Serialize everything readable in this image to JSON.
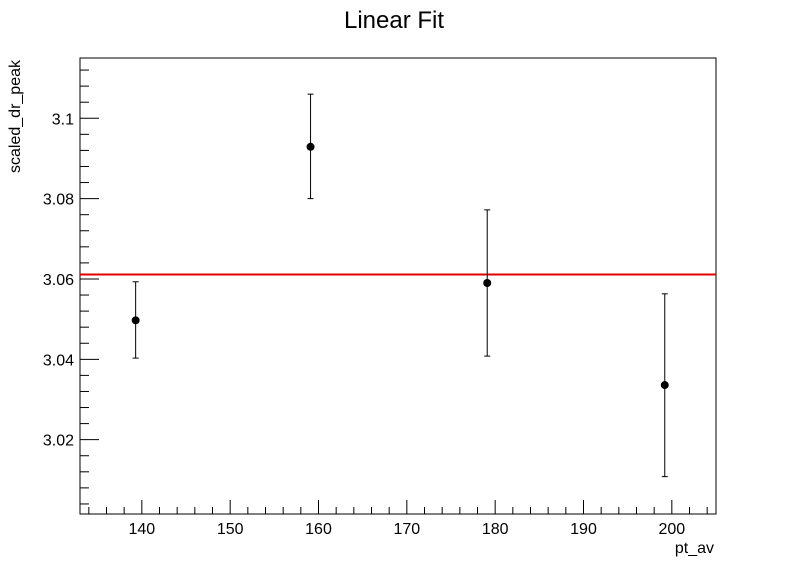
{
  "chart_data": {
    "type": "scatter",
    "title": "Linear Fit",
    "xlabel": "pt_av",
    "ylabel": "scaled_dr_peak",
    "xlim": [
      133,
      205
    ],
    "ylim": [
      3.0015,
      3.115
    ],
    "x_ticks": [
      140,
      150,
      160,
      170,
      180,
      190,
      200
    ],
    "y_ticks": [
      3.02,
      3.04,
      3.06,
      3.08,
      3.1
    ],
    "x_tick_labels": [
      "140",
      "150",
      "160",
      "170",
      "180",
      "190",
      "200"
    ],
    "y_tick_labels": [
      "3.02",
      "3.04",
      "3.06",
      "3.08",
      "3.1"
    ],
    "grid": false,
    "legend": false,
    "points": [
      {
        "x": 139.3,
        "y": 3.0497,
        "err_low": 3.0403,
        "err_high": 3.0593
      },
      {
        "x": 159.1,
        "y": 3.0929,
        "err_low": 3.08,
        "err_high": 3.106
      },
      {
        "x": 179.1,
        "y": 3.059,
        "err_low": 3.0408,
        "err_high": 3.0772
      },
      {
        "x": 199.2,
        "y": 3.0336,
        "err_low": 3.0108,
        "err_high": 3.0563
      }
    ],
    "fit_line": {
      "y": 3.0611,
      "color": "#e00000"
    },
    "marker_color": "#000000"
  }
}
